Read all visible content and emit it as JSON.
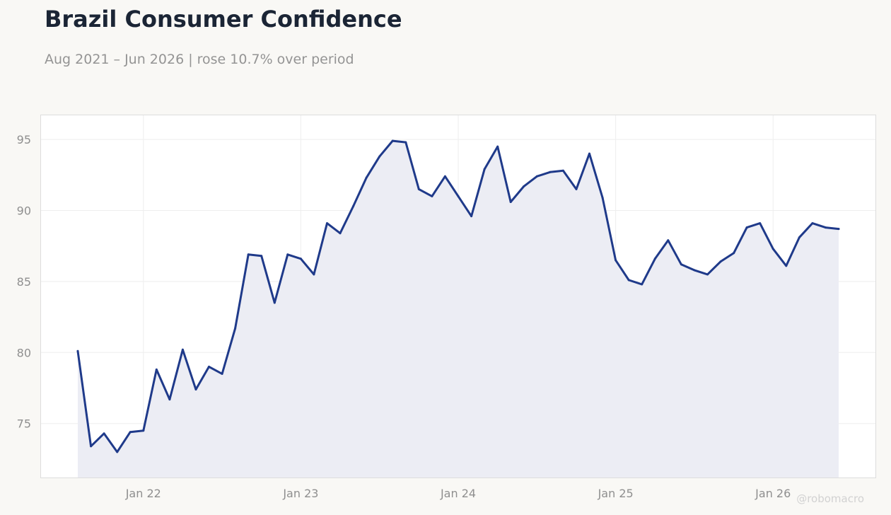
{
  "header": {
    "title": "Brazil Consumer Confidence",
    "subtitle": "Aug 2021 – Jun 2026 | rose 10.7% over period"
  },
  "watermark": "@robomacro",
  "colors": {
    "line": "#1f3a8a",
    "fill": "#ecedf4",
    "background": "#f9f8f5",
    "plot_background": "#ffffff",
    "grid": "#eeeeee",
    "axis_text": "#8f8f8f"
  },
  "chart_data": {
    "type": "area",
    "title": "Brazil Consumer Confidence",
    "subtitle": "Aug 2021 – Jun 2026 | rose 10.7% over period",
    "xlabel": "",
    "ylabel": "",
    "grid": true,
    "ylim": [
      71.2,
      96.7
    ],
    "yticks": [
      75,
      80,
      85,
      90,
      95
    ],
    "xticks": [
      {
        "date": "2022-01",
        "label": "Jan 22"
      },
      {
        "date": "2023-01",
        "label": "Jan 23"
      },
      {
        "date": "2024-01",
        "label": "Jan 24"
      },
      {
        "date": "2025-01",
        "label": "Jan 25"
      },
      {
        "date": "2026-01",
        "label": "Jan 26"
      }
    ],
    "x": [
      "2021-08",
      "2021-09",
      "2021-10",
      "2021-11",
      "2021-12",
      "2022-01",
      "2022-02",
      "2022-03",
      "2022-04",
      "2022-05",
      "2022-06",
      "2022-07",
      "2022-08",
      "2022-09",
      "2022-10",
      "2022-11",
      "2022-12",
      "2023-01",
      "2023-02",
      "2023-03",
      "2023-04",
      "2023-05",
      "2023-06",
      "2023-07",
      "2023-08",
      "2023-09",
      "2023-10",
      "2023-11",
      "2023-12",
      "2024-01",
      "2024-02",
      "2024-03",
      "2024-04",
      "2024-05",
      "2024-06",
      "2024-07",
      "2024-08",
      "2024-09",
      "2024-10",
      "2024-11",
      "2024-12",
      "2025-01",
      "2025-02",
      "2025-03",
      "2025-04",
      "2025-05",
      "2025-06",
      "2025-07",
      "2025-08",
      "2025-09",
      "2025-10",
      "2025-11",
      "2025-12",
      "2026-01",
      "2026-02",
      "2026-03",
      "2026-04",
      "2026-05",
      "2026-06"
    ],
    "series": [
      {
        "values": [
          80.1,
          73.4,
          74.3,
          73.0,
          74.4,
          74.5,
          78.8,
          76.7,
          80.2,
          77.4,
          79.0,
          78.5,
          81.7,
          86.9,
          86.8,
          83.5,
          86.9,
          86.6,
          85.5,
          89.1,
          88.4,
          90.3,
          92.3,
          93.8,
          94.9,
          94.8,
          91.5,
          91.0,
          92.4,
          91.0,
          89.6,
          92.9,
          94.5,
          90.6,
          91.7,
          92.4,
          92.7,
          92.8,
          91.5,
          94.0,
          90.9,
          86.5,
          85.1,
          84.8,
          86.6,
          87.9,
          86.2,
          85.8,
          85.5,
          86.4,
          87.0,
          88.8,
          89.1,
          87.3,
          86.1,
          88.1,
          89.1,
          88.8,
          88.7
        ]
      }
    ]
  }
}
